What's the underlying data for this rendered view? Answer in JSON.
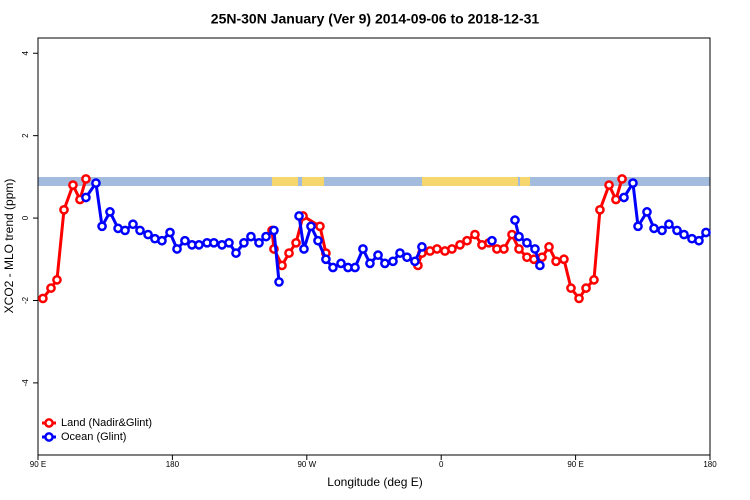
{
  "chart_data": {
    "type": "line",
    "title": "25N-30N January (Ver 9)   2014-09-06 to 2018-12-31",
    "x_label": "Longitude (deg E)",
    "y_label": "XCO2 - MLO trend (ppm)",
    "xlim": [
      90,
      540
    ],
    "xticks": [
      {
        "value": 90,
        "label": "90 E"
      },
      {
        "value": 180,
        "label": "180"
      },
      {
        "value": 270,
        "label": "90 W"
      },
      {
        "value": 360,
        "label": "0"
      },
      {
        "value": 450,
        "label": "90 E"
      },
      {
        "value": 540,
        "label": "180"
      }
    ],
    "ylim": [
      -5.75,
      4.37
    ],
    "yticks": [
      -4,
      -2,
      0,
      2,
      4
    ],
    "legend": "bottom-left",
    "series": [
      {
        "name": "Land (Nadir&Glint)",
        "color": "#ff0000",
        "x": [
          93.3,
          98.7,
          102.7,
          107.4,
          113.4,
          118.1,
          122.1,
          null,
          246.7,
          248.0,
          253.4,
          258.1,
          262.8,
          267.5,
          278.8,
          282.8,
          null,
          344.4,
          347.1,
          352.5,
          357.2,
          362.5,
          367.2,
          372.6,
          377.3,
          382.6,
          387.3,
          392.0,
          397.3,
          402.0,
          407.4,
          412.1,
          417.4,
          422.1,
          427.5,
          432.2,
          436.9,
          442.2,
          446.9,
          452.3,
          457.0,
          462.3,
          466.3,
          472.4,
          477.0,
          481.1
        ],
        "values": [
          -1.95,
          -1.7,
          -1.5,
          0.2,
          0.8,
          0.45,
          0.95,
          null,
          -0.3,
          -0.75,
          -1.15,
          -0.85,
          -0.6,
          0.05,
          -0.2,
          -0.85,
          null,
          -1.15,
          -0.85,
          -0.8,
          -0.75,
          -0.8,
          -0.75,
          -0.65,
          -0.55,
          -0.4,
          -0.65,
          -0.6,
          -0.75,
          -0.75,
          -0.4,
          -0.75,
          -0.95,
          -1.0,
          -0.95,
          -0.7,
          -1.05,
          -1.0,
          -1.7,
          -1.95,
          -1.7,
          -1.5,
          0.2,
          0.8,
          0.45,
          0.95
        ]
      },
      {
        "name": "Ocean (Glint)",
        "color": "#0000ff",
        "x": [
          122.1,
          128.8,
          132.9,
          138.2,
          143.6,
          148.3,
          153.6,
          158.3,
          163.7,
          168.3,
          173.0,
          178.4,
          183.1,
          188.4,
          193.1,
          197.8,
          203.2,
          207.8,
          213.2,
          217.9,
          222.6,
          227.9,
          232.6,
          238.0,
          242.7,
          248.0,
          251.4,
          null,
          264.8,
          268.1,
          272.8,
          277.5,
          282.8,
          287.5,
          292.9,
          297.6,
          302.3,
          307.6,
          312.3,
          317.7,
          322.3,
          327.7,
          332.4,
          337.1,
          342.4,
          347.1,
          null,
          394.0,
          null,
          409.4,
          412.1,
          417.4,
          422.8,
          426.1,
          null,
          482.4,
          488.4,
          491.8,
          497.8,
          502.5,
          507.9,
          512.5,
          517.9,
          522.6,
          527.9,
          532.6,
          537.3
        ],
        "values": [
          0.5,
          0.85,
          -0.2,
          0.15,
          -0.25,
          -0.3,
          -0.15,
          -0.3,
          -0.4,
          -0.5,
          -0.55,
          -0.35,
          -0.75,
          -0.55,
          -0.65,
          -0.65,
          -0.6,
          -0.6,
          -0.65,
          -0.6,
          -0.85,
          -0.6,
          -0.45,
          -0.6,
          -0.45,
          -0.3,
          -1.55,
          null,
          0.05,
          -0.75,
          -0.2,
          -0.55,
          -1.0,
          -1.2,
          -1.1,
          -1.2,
          -1.2,
          -0.75,
          -1.1,
          -0.9,
          -1.1,
          -1.05,
          -0.85,
          -0.95,
          -1.05,
          -0.7,
          null,
          -0.55,
          null,
          -0.05,
          -0.45,
          -0.6,
          -0.75,
          -1.15,
          null,
          0.5,
          0.85,
          -0.2,
          0.15,
          -0.25,
          -0.3,
          -0.15,
          -0.3,
          -0.4,
          -0.5,
          -0.55,
          -0.35
        ]
      }
    ]
  }
}
